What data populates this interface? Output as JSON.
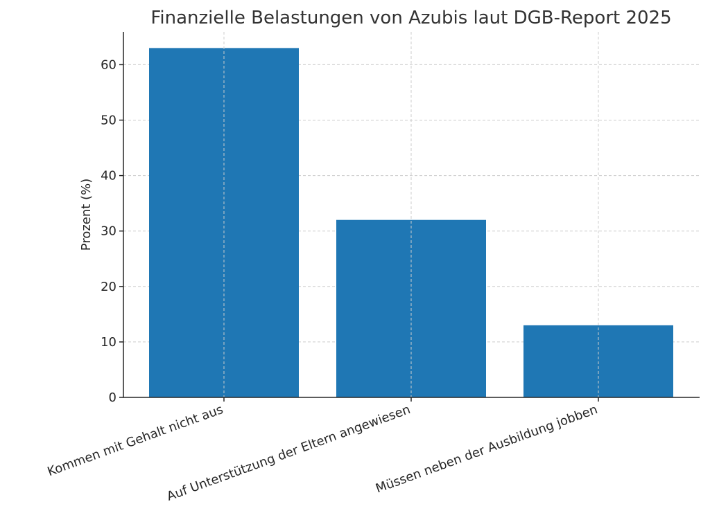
{
  "chart_data": {
    "type": "bar",
    "title": "Finanzielle Belastungen von Azubis laut DGB-Report 2025",
    "xlabel": "",
    "ylabel": "Prozent (%)",
    "categories": [
      "Kommen mit Gehalt nicht aus",
      "Auf Unterstützung der Eltern angewiesen",
      "Müssen neben der Ausbildung jobben"
    ],
    "values": [
      63,
      32,
      13
    ],
    "ylim": [
      0,
      66
    ],
    "yticks": [
      0,
      10,
      20,
      30,
      40,
      50,
      60
    ],
    "grid": true,
    "legend": null,
    "bar_color": "#1f77b4"
  }
}
